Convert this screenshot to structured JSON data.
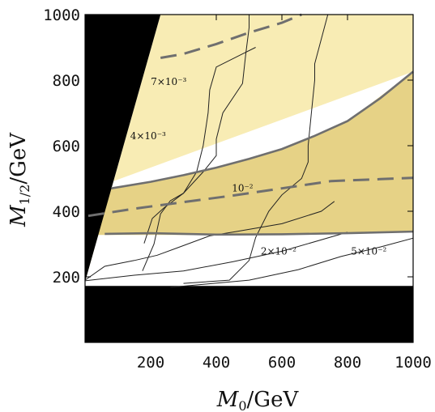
{
  "chart_data": {
    "type": "contour",
    "xlabel": "M_0/GeV",
    "ylabel": "M_{1/2}/GeV",
    "xlim": [
      0,
      1000
    ],
    "ylim": [
      0,
      1000
    ],
    "xticks": [
      200,
      400,
      600,
      800,
      1000
    ],
    "yticks": [
      200,
      400,
      600,
      800,
      1000
    ],
    "colors": {
      "excluded": "#000000",
      "light_region": "#f8ecb4",
      "dark_region": "#e6d286",
      "boundary": "#6f6f6f",
      "contour": "#222222"
    },
    "excluded_regions": [
      {
        "name": "upper-left wedge",
        "polygon": [
          [
            0,
            1000
          ],
          [
            230,
            1000
          ],
          [
            0,
            185
          ]
        ]
      },
      {
        "name": "bottom band",
        "polygon": [
          [
            0,
            0
          ],
          [
            1000,
            0
          ],
          [
            1000,
            172
          ],
          [
            0,
            172
          ]
        ]
      }
    ],
    "shaded_regions": [
      {
        "name": "light",
        "color": "light_region",
        "boundary": [
          [
            230,
            1000
          ],
          [
            1000,
            1000
          ],
          [
            1000,
            826
          ],
          [
            0,
            460
          ],
          [
            0,
            185
          ]
        ]
      },
      {
        "name": "dark",
        "color": "dark_region",
        "boundary": [
          [
            0,
            460
          ],
          [
            200,
            490
          ],
          [
            400,
            533
          ],
          [
            600,
            590
          ],
          [
            800,
            675
          ],
          [
            1000,
            826
          ],
          [
            1000,
            338
          ],
          [
            400,
            328
          ],
          [
            0,
            328
          ]
        ]
      }
    ],
    "solid_boundaries": [
      {
        "points": [
          [
            80,
            470
          ],
          [
            200,
            490
          ],
          [
            300,
            510
          ],
          [
            400,
            533
          ],
          [
            500,
            560
          ],
          [
            600,
            590
          ],
          [
            700,
            630
          ],
          [
            800,
            675
          ],
          [
            900,
            745
          ],
          [
            1000,
            826
          ]
        ]
      },
      {
        "points": [
          [
            60,
            331
          ],
          [
            200,
            333
          ],
          [
            400,
            329
          ],
          [
            600,
            330
          ],
          [
            800,
            333
          ],
          [
            1000,
            338
          ]
        ]
      }
    ],
    "dashed_lines": [
      {
        "points": [
          [
            230,
            868
          ],
          [
            300,
            880
          ],
          [
            400,
            910
          ],
          [
            500,
            945
          ],
          [
            600,
            975
          ],
          [
            660,
            1000
          ]
        ]
      },
      {
        "points": [
          [
            10,
            386
          ],
          [
            150,
            408
          ],
          [
            300,
            428
          ],
          [
            450,
            448
          ],
          [
            600,
            470
          ],
          [
            750,
            492
          ],
          [
            900,
            498
          ],
          [
            1000,
            502
          ]
        ]
      }
    ],
    "contours": [
      {
        "points": [
          [
            0,
            188
          ],
          [
            150,
            205
          ],
          [
            300,
            218
          ],
          [
            450,
            246
          ],
          [
            600,
            278
          ],
          [
            800,
            336
          ]
        ]
      },
      {
        "points": [
          [
            0,
            190
          ],
          [
            60,
            232
          ],
          [
            150,
            250
          ],
          [
            220,
            266
          ],
          [
            280,
            288
          ],
          [
            380,
            325
          ],
          [
            460,
            338
          ],
          [
            600,
            362
          ],
          [
            720,
            400
          ],
          [
            760,
            430
          ]
        ]
      },
      {
        "points": [
          [
            175,
            218
          ],
          [
            210,
            300
          ],
          [
            230,
            392
          ],
          [
            260,
            432
          ],
          [
            300,
            455
          ],
          [
            340,
            520
          ],
          [
            360,
            600
          ],
          [
            370,
            665
          ],
          [
            375,
            700
          ],
          [
            380,
            770
          ],
          [
            400,
            840
          ],
          [
            480,
            880
          ],
          [
            520,
            900
          ]
        ]
      },
      {
        "points": [
          [
            180,
            302
          ],
          [
            205,
            378
          ],
          [
            240,
            410
          ],
          [
            300,
            455
          ],
          [
            360,
            520
          ],
          [
            400,
            570
          ],
          [
            400,
            620
          ],
          [
            420,
            700
          ],
          [
            480,
            790
          ],
          [
            490,
            880
          ],
          [
            500,
            960
          ],
          [
            500,
            1000
          ]
        ]
      },
      {
        "points": [
          [
            300,
            180
          ],
          [
            440,
            190
          ],
          [
            500,
            250
          ],
          [
            520,
            320
          ],
          [
            560,
            400
          ],
          [
            600,
            450
          ],
          [
            660,
            500
          ],
          [
            680,
            550
          ],
          [
            680,
            600
          ],
          [
            690,
            700
          ],
          [
            700,
            800
          ],
          [
            700,
            850
          ],
          [
            740,
            1000
          ]
        ]
      },
      {
        "points": [
          [
            260,
            168
          ],
          [
            500,
            190
          ],
          [
            650,
            222
          ],
          [
            780,
            262
          ],
          [
            900,
            291
          ],
          [
            1000,
            318
          ]
        ]
      }
    ],
    "contour_labels": [
      "7×10⁻³",
      "4×10⁻³",
      "10⁻²",
      "2×10⁻²",
      "5×10⁻²"
    ],
    "contour_label_positions": [
      [
        255,
        785
      ],
      [
        192,
        620
      ],
      [
        480,
        460
      ],
      [
        590,
        268
      ],
      [
        865,
        268
      ]
    ]
  }
}
